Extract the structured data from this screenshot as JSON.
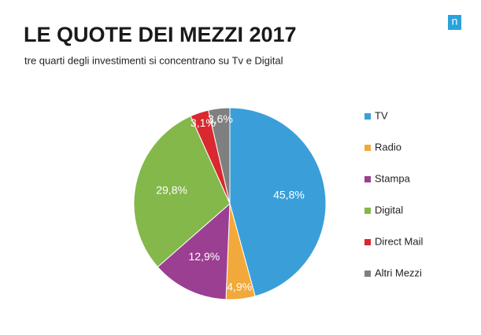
{
  "logo": "n",
  "chart_data": {
    "type": "pie",
    "title": "LE QUOTE DEI MEZZI 2017",
    "subtitle": "tre quarti degli investimenti si concentrano su Tv e Digital",
    "categories": [
      "TV",
      "Radio",
      "Stampa",
      "Digital",
      "Direct Mail",
      "Altri Mezzi"
    ],
    "values": [
      45.8,
      4.9,
      12.9,
      29.8,
      3.1,
      3.6
    ],
    "value_labels": [
      "45,8%",
      "4,9%",
      "12,9%",
      "29,8%",
      "3,1%",
      "3,6%"
    ],
    "colors": [
      "#3a9fd8",
      "#f2a93b",
      "#9b3f93",
      "#84b84a",
      "#d9282f",
      "#7f7f7f"
    ],
    "legend": "right"
  }
}
